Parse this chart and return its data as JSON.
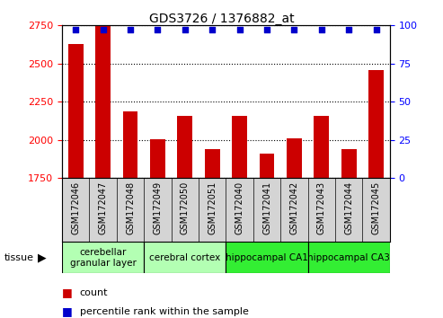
{
  "title": "GDS3726 / 1376882_at",
  "samples": [
    "GSM172046",
    "GSM172047",
    "GSM172048",
    "GSM172049",
    "GSM172050",
    "GSM172051",
    "GSM172040",
    "GSM172041",
    "GSM172042",
    "GSM172043",
    "GSM172044",
    "GSM172045"
  ],
  "counts": [
    2630,
    2750,
    2185,
    2005,
    2155,
    1940,
    2155,
    1910,
    2010,
    2155,
    1940,
    2460
  ],
  "percentiles": [
    97,
    97,
    97,
    97,
    97,
    97,
    97,
    97,
    97,
    97,
    97,
    97
  ],
  "ylim_left": [
    1750,
    2750
  ],
  "ylim_right": [
    0,
    100
  ],
  "yticks_left": [
    1750,
    2000,
    2250,
    2500,
    2750
  ],
  "yticks_right": [
    0,
    25,
    50,
    75,
    100
  ],
  "bar_color": "#cc0000",
  "dot_color": "#0000cc",
  "groups": [
    {
      "label": "cerebellar\ngranular layer",
      "start": 0,
      "end": 3,
      "color": "#b3ffb3"
    },
    {
      "label": "cerebral cortex",
      "start": 3,
      "end": 6,
      "color": "#b3ffb3"
    },
    {
      "label": "hippocampal CA1",
      "start": 6,
      "end": 9,
      "color": "#33ee33"
    },
    {
      "label": "hippocampal CA3",
      "start": 9,
      "end": 12,
      "color": "#33ee33"
    }
  ],
  "tissue_label": "tissue",
  "legend_count_label": "count",
  "legend_pct_label": "percentile rank within the sample",
  "bg_color": "#ffffff",
  "plot_bg_color": "#ffffff",
  "sample_box_color": "#d4d4d4"
}
